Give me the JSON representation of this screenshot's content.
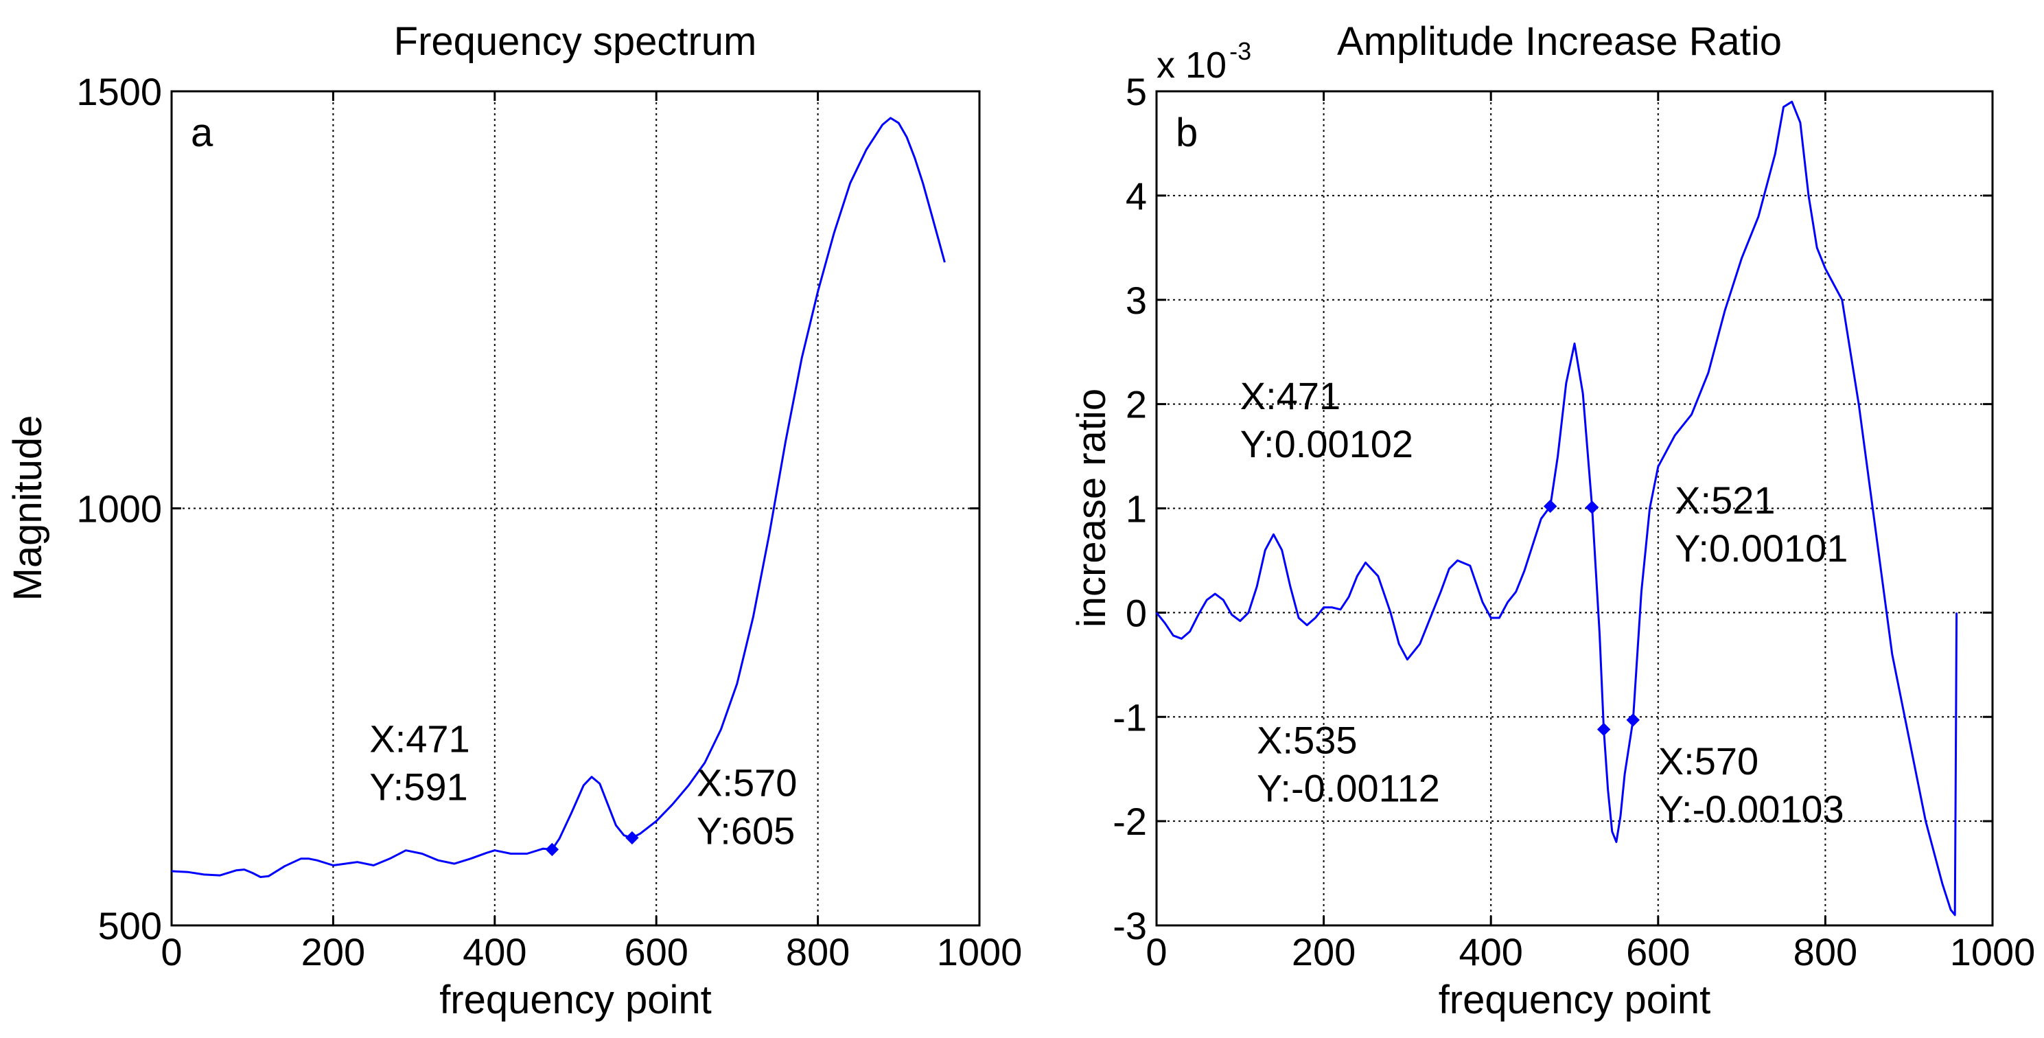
{
  "chart_data": [
    {
      "type": "line",
      "panel_label": "a",
      "title": "Frequency spectrum",
      "xlabel": "frequency point",
      "ylabel": "Magnitude",
      "xlim": [
        0,
        1000
      ],
      "ylim": [
        500,
        1500
      ],
      "xticks": [
        0,
        200,
        400,
        600,
        800,
        1000
      ],
      "xtick_labels": [
        "0",
        "200",
        "400",
        "600",
        "800",
        "1000"
      ],
      "yticks": [
        500,
        1000,
        1500
      ],
      "ytick_labels": [
        "500",
        "1000",
        "1500"
      ],
      "grid": true,
      "color": "#0000ff",
      "series": [
        {
          "name": "spectrum",
          "x": [
            0,
            20,
            40,
            60,
            80,
            90,
            100,
            110,
            120,
            140,
            160,
            170,
            180,
            200,
            215,
            230,
            250,
            270,
            290,
            310,
            330,
            350,
            370,
            390,
            400,
            420,
            440,
            460,
            471,
            480,
            495,
            510,
            520,
            530,
            540,
            550,
            560,
            570,
            580,
            600,
            620,
            640,
            660,
            680,
            700,
            720,
            740,
            760,
            780,
            800,
            820,
            840,
            860,
            880,
            890,
            900,
            910,
            920,
            930,
            940,
            950,
            957
          ],
          "y": [
            565,
            564,
            561,
            560,
            566,
            567,
            563,
            558,
            559,
            571,
            580,
            580,
            578,
            572,
            574,
            576,
            572,
            580,
            590,
            586,
            578,
            574,
            580,
            587,
            590,
            586,
            586,
            592,
            591,
            604,
            635,
            668,
            678,
            670,
            645,
            620,
            608,
            605,
            610,
            625,
            645,
            668,
            695,
            735,
            790,
            870,
            970,
            1080,
            1180,
            1260,
            1330,
            1390,
            1430,
            1460,
            1468,
            1462,
            1445,
            1420,
            1390,
            1355,
            1320,
            1295
          ]
        }
      ],
      "markers": [
        {
          "x": 471,
          "y": 591,
          "label_x": "X:471",
          "label_y": "Y:591",
          "text_at": [
            245,
            708
          ]
        },
        {
          "x": 570,
          "y": 605,
          "label_x": "X:570",
          "label_y": "Y:605",
          "text_at": [
            650,
            655
          ]
        }
      ]
    },
    {
      "type": "line",
      "panel_label": "b",
      "title": "Amplitude Increase Ratio",
      "multiplier_base": "x 10",
      "multiplier_exp": "-3",
      "xlabel": "frequency point",
      "ylabel": "increase ratio",
      "xlim": [
        0,
        1000
      ],
      "ylim": [
        -3,
        5
      ],
      "xticks": [
        0,
        200,
        400,
        600,
        800,
        1000
      ],
      "xtick_labels": [
        "0",
        "200",
        "400",
        "600",
        "800",
        "1000"
      ],
      "yticks": [
        -3,
        -2,
        -1,
        0,
        1,
        2,
        3,
        4,
        5
      ],
      "ytick_labels": [
        "-3",
        "-2",
        "-1",
        "0",
        "1",
        "2",
        "3",
        "4",
        "5"
      ],
      "grid": true,
      "color": "#0000ff",
      "series": [
        {
          "name": "increase ratio (x10^-3)",
          "x": [
            0,
            10,
            20,
            30,
            40,
            50,
            60,
            70,
            80,
            90,
            100,
            110,
            120,
            130,
            140,
            150,
            160,
            170,
            180,
            190,
            200,
            210,
            220,
            230,
            240,
            250,
            265,
            280,
            290,
            300,
            315,
            330,
            340,
            350,
            360,
            375,
            390,
            400,
            410,
            420,
            430,
            440,
            450,
            460,
            471,
            480,
            490,
            500,
            510,
            521,
            530,
            535,
            540,
            545,
            550,
            555,
            560,
            570,
            580,
            590,
            600,
            620,
            640,
            660,
            680,
            700,
            720,
            740,
            750,
            760,
            770,
            780,
            790,
            800,
            820,
            840,
            860,
            880,
            900,
            920,
            940,
            950,
            955,
            956,
            957
          ],
          "y": [
            0.0,
            -0.1,
            -0.22,
            -0.25,
            -0.18,
            -0.02,
            0.12,
            0.18,
            0.12,
            -0.02,
            -0.08,
            0.0,
            0.25,
            0.6,
            0.75,
            0.6,
            0.25,
            -0.05,
            -0.12,
            -0.05,
            0.05,
            0.05,
            0.03,
            0.15,
            0.35,
            0.48,
            0.35,
            0.0,
            -0.3,
            -0.45,
            -0.3,
            0.0,
            0.2,
            0.42,
            0.5,
            0.45,
            0.1,
            -0.05,
            -0.05,
            0.1,
            0.2,
            0.4,
            0.65,
            0.9,
            1.02,
            1.5,
            2.2,
            2.58,
            2.1,
            1.01,
            -0.2,
            -1.12,
            -1.7,
            -2.1,
            -2.2,
            -1.95,
            -1.55,
            -1.03,
            0.2,
            1.0,
            1.4,
            1.7,
            1.9,
            2.3,
            2.9,
            3.4,
            3.8,
            4.4,
            4.85,
            4.9,
            4.7,
            4.0,
            3.5,
            3.3,
            3.0,
            2.0,
            0.8,
            -0.4,
            -1.2,
            -2.0,
            -2.6,
            -2.85,
            -2.9,
            -1.5,
            0.0
          ]
        }
      ],
      "markers": [
        {
          "x": 471,
          "y": 1.02,
          "label_x": "X:471",
          "label_y": "Y:0.00102",
          "text_at": [
            100,
            1.95
          ]
        },
        {
          "x": 521,
          "y": 1.01,
          "label_x": "X:521",
          "label_y": "Y:0.00101",
          "text_at": [
            620,
            0.95
          ]
        },
        {
          "x": 535,
          "y": -1.12,
          "label_x": "X:535",
          "label_y": "Y:-0.00112",
          "text_at": [
            120,
            -1.35
          ]
        },
        {
          "x": 570,
          "y": -1.03,
          "label_x": "X:570",
          "label_y": "Y:-0.00103",
          "text_at": [
            600,
            -1.55
          ]
        }
      ]
    }
  ]
}
